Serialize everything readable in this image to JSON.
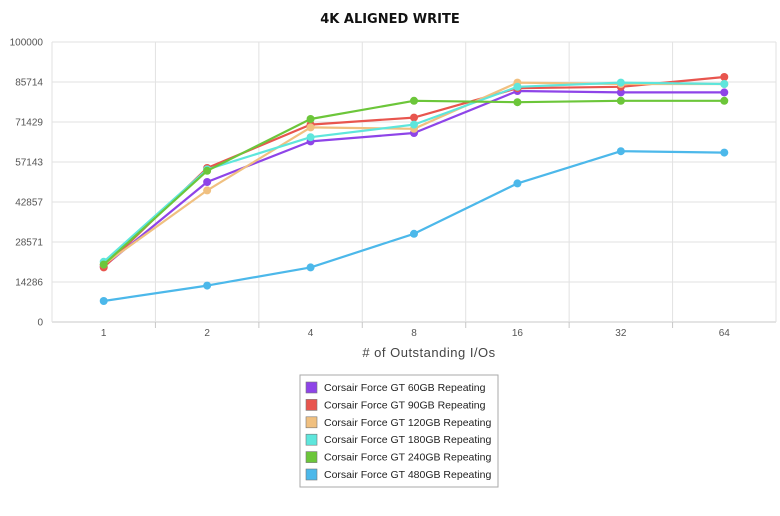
{
  "chart_data": {
    "type": "line",
    "title": "4K ALIGNED WRITE",
    "xlabel": "# of Outstanding I/Os",
    "ylabel": "",
    "categories": [
      "1",
      "2",
      "4",
      "8",
      "16",
      "32",
      "64"
    ],
    "ylim": [
      0,
      100000
    ],
    "yticks": [
      "0",
      "14286",
      "28571",
      "42857",
      "57143",
      "71429",
      "85714",
      "100000"
    ],
    "grid": true,
    "legend_position": "bottom-center",
    "series": [
      {
        "name": "Corsair Force GT 60GB Repeating",
        "color": "#8e44e8",
        "values": [
          19800,
          50000,
          64500,
          67500,
          82500,
          82000,
          82000
        ]
      },
      {
        "name": "Corsair Force GT 90GB Repeating",
        "color": "#e8554e",
        "values": [
          19500,
          55000,
          70500,
          73000,
          83500,
          84000,
          87500
        ]
      },
      {
        "name": "Corsair Force GT 120GB Repeating",
        "color": "#f0c080",
        "values": [
          20500,
          47000,
          69500,
          69000,
          85500,
          85000,
          85000
        ]
      },
      {
        "name": "Corsair Force GT 180GB Repeating",
        "color": "#5ee6dc",
        "values": [
          21500,
          54500,
          66000,
          70500,
          84000,
          85500,
          85000
        ]
      },
      {
        "name": "Corsair Force GT 240GB Repeating",
        "color": "#6cc63a",
        "values": [
          20500,
          54000,
          72500,
          79000,
          78500,
          79000,
          79000
        ]
      },
      {
        "name": "Corsair Force GT 480GB Repeating",
        "color": "#4cb8ea",
        "values": [
          7500,
          13000,
          19500,
          31500,
          49500,
          61000,
          60500
        ]
      }
    ]
  }
}
